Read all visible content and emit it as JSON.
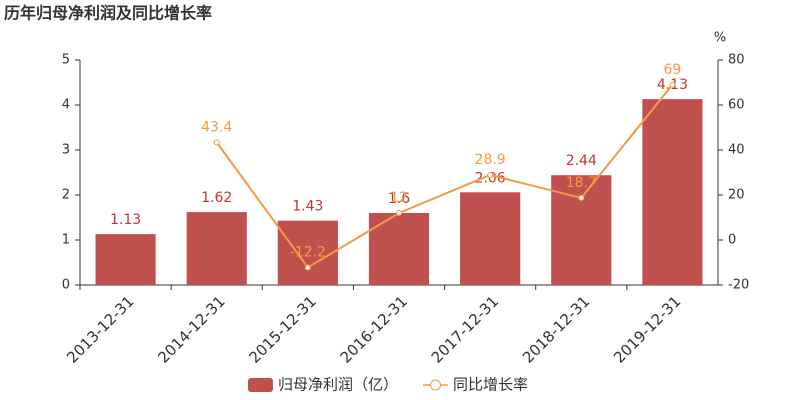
{
  "chart_data": {
    "type": "bar",
    "title": "历年归母净利润及同比增长率",
    "categories": [
      "2013-12-31",
      "2014-12-31",
      "2015-12-31",
      "2016-12-31",
      "2017-12-31",
      "2018-12-31",
      "2019-12-31"
    ],
    "series": [
      {
        "name": "归母净利润（亿）",
        "type": "bar",
        "color": "#c0504d",
        "label_color": "#c23531",
        "values": [
          1.13,
          1.62,
          1.43,
          1.6,
          2.06,
          2.44,
          4.13
        ]
      },
      {
        "name": "同比增长率",
        "type": "line",
        "axis": "y2",
        "color": "#f39a43",
        "values": [
          null,
          43.4,
          -12.2,
          12,
          28.9,
          18.7,
          69
        ]
      }
    ],
    "ylim": [
      0,
      5
    ],
    "yticks": [
      0,
      1,
      2,
      3,
      4,
      5
    ],
    "y2lim": [
      -20,
      80
    ],
    "y2ticks": [
      -20,
      0,
      20,
      40,
      60,
      80
    ],
    "y2label": "%",
    "grid": false,
    "legend": "bottom"
  }
}
